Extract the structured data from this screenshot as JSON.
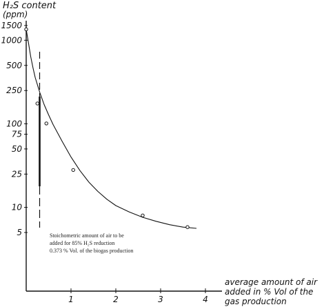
{
  "chart_data": {
    "type": "line",
    "title": "",
    "ylabel_line1": "H₂S content",
    "ylabel_line2": "(ppm)",
    "xlabel_lines": [
      "average amount of air",
      "added in % Vol of the",
      "gas production"
    ],
    "y_scale": "log",
    "grid": false,
    "xlim": [
      0,
      4
    ],
    "ylim": [
      5,
      1500
    ],
    "x_ticks": [
      1,
      2,
      3,
      4
    ],
    "x_tick_labels": [
      "1",
      "2",
      "3",
      "4"
    ],
    "y_ticks": [
      1500,
      1000,
      500,
      250,
      100,
      75,
      50,
      25,
      10,
      5
    ],
    "y_tick_labels": [
      "1500",
      "1000",
      "500",
      "250",
      "100",
      "75",
      "50",
      "25",
      "10",
      "5"
    ],
    "points": {
      "x": [
        0.0,
        0.25,
        0.45,
        1.05,
        2.6,
        3.6
      ],
      "y": [
        1350,
        175,
        101,
        28,
        8,
        5.8
      ]
    },
    "curve": {
      "x": [
        0.0,
        0.05,
        0.1,
        0.15,
        0.2,
        0.3,
        0.4,
        0.5,
        0.6,
        0.8,
        1.0,
        1.2,
        1.4,
        1.6,
        1.8,
        2.0,
        2.3,
        2.6,
        2.9,
        3.2,
        3.5,
        3.8
      ],
      "y": [
        1350,
        930,
        640,
        470,
        360,
        240,
        170,
        128,
        98,
        62,
        40,
        27.5,
        20,
        15.5,
        12.5,
        10.5,
        8.8,
        7.6,
        6.8,
        6.2,
        5.8,
        5.6
      ]
    },
    "marker_x": 0.3,
    "annotation_lines": [
      "Stoichometric amount of air to be",
      "added for 85% H₂S reduction",
      "0.373 % Vol. of the biogas production"
    ]
  }
}
